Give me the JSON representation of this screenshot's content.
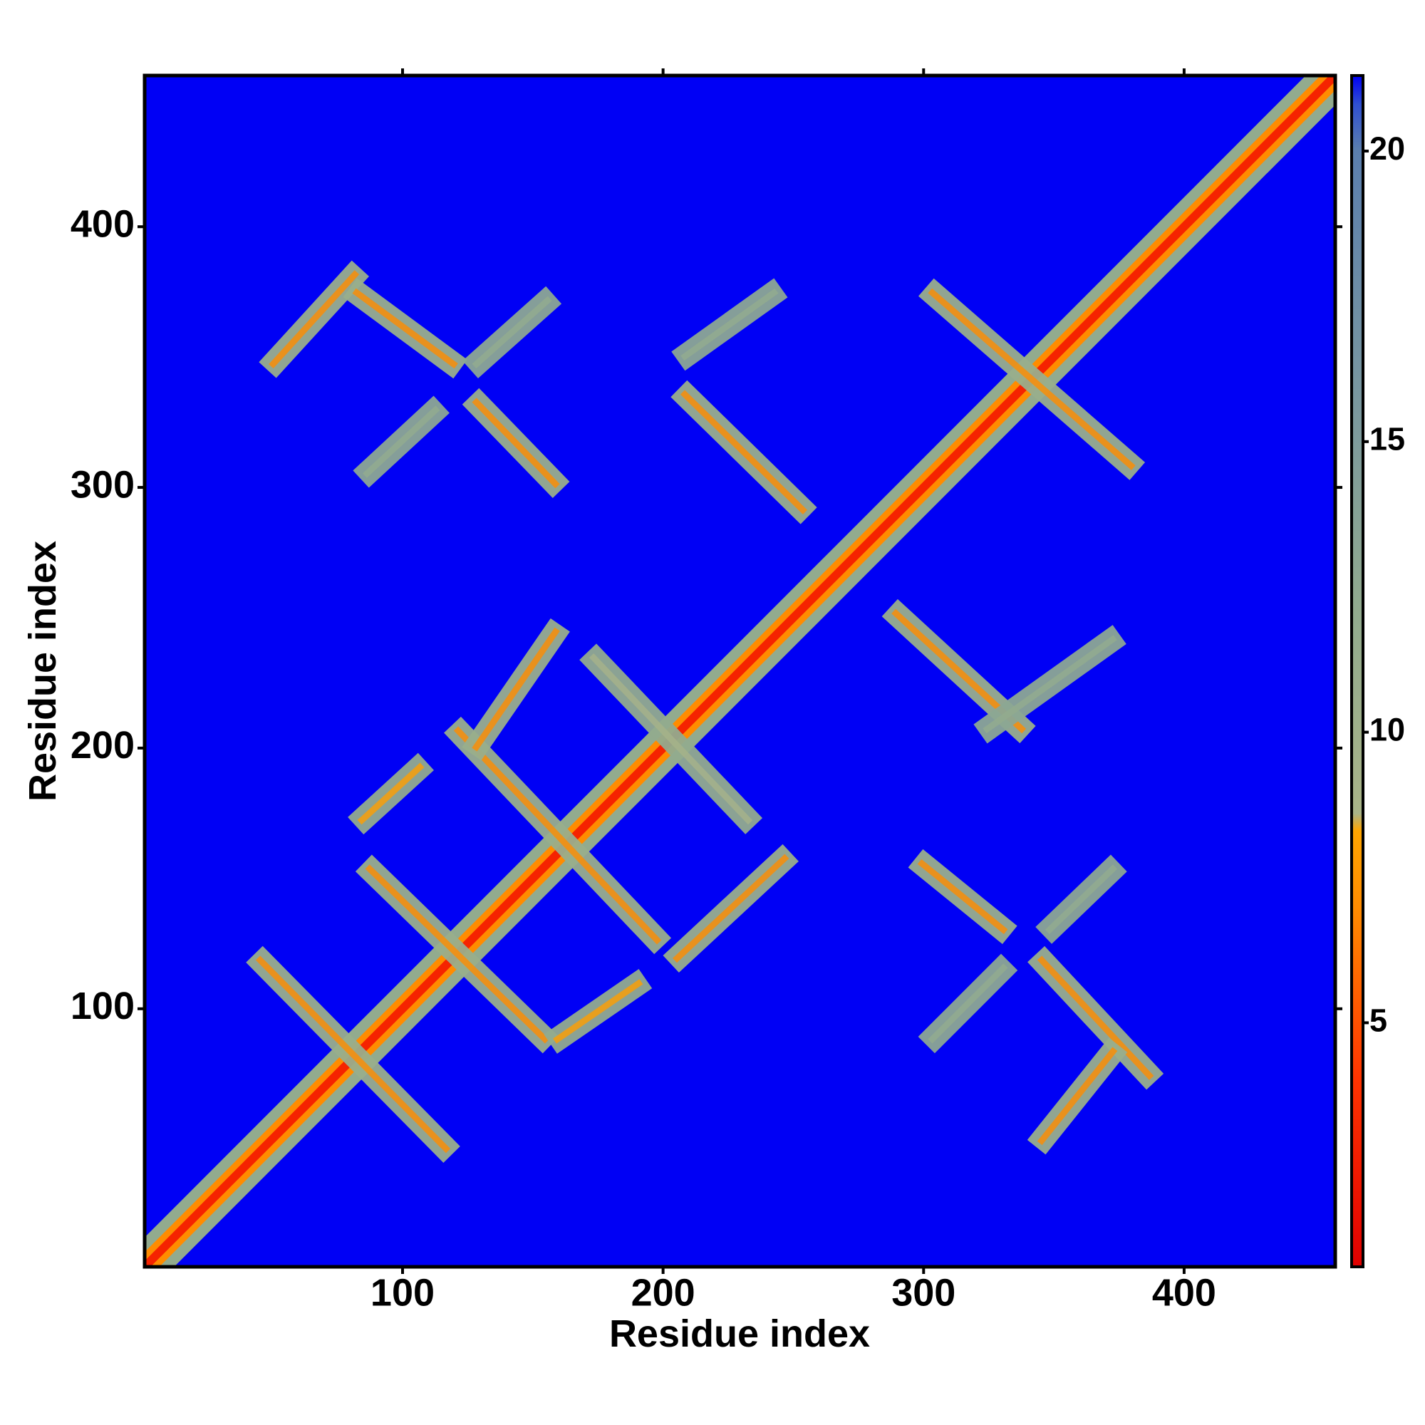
{
  "chart_data": {
    "type": "contact_map",
    "xlabel": "Residue index",
    "ylabel": "Residue index",
    "xlim": [
      1,
      458
    ],
    "ylim": [
      1,
      458
    ],
    "xticks": [
      100,
      200,
      300,
      400
    ],
    "yticks": [
      100,
      200,
      300,
      400
    ],
    "clim": [
      0.8,
      21.3
    ],
    "cticks": [
      5,
      10,
      15,
      20
    ],
    "colorscale": [
      {
        "value": 0.8,
        "color": "#e00000"
      },
      {
        "value": 4,
        "color": "#ff3300"
      },
      {
        "value": 7,
        "color": "#ff8c00"
      },
      {
        "value": 8.3,
        "color": "#ffa500"
      },
      {
        "value": 8.6,
        "color": "#a9b488"
      },
      {
        "value": 12,
        "color": "#92ab8e"
      },
      {
        "value": 16,
        "color": "#7896a0"
      },
      {
        "value": 20,
        "color": "#5b7fae"
      },
      {
        "value": 20.8,
        "color": "#3050d0"
      },
      {
        "value": 21.3,
        "color": "#0000f5"
      }
    ],
    "diagonal": {
      "start": 1,
      "end": 458,
      "values": [
        12,
        7,
        3
      ]
    },
    "bands": [
      {
        "x": [
          45,
          117
        ],
        "y": [
          119,
          46
        ],
        "values": [
          11,
          7
        ]
      },
      {
        "x": [
          87,
          155
        ],
        "y": [
          154,
          88
        ],
        "values": [
          11,
          7
        ]
      },
      {
        "x": [
          121,
          198
        ],
        "y": [
          207,
          126
        ],
        "values": [
          11,
          7
        ]
      },
      {
        "x": [
          128,
          159
        ],
        "y": [
          200,
          245
        ],
        "values": [
          11,
          7
        ]
      },
      {
        "x": [
          84,
          107
        ],
        "y": [
          172,
          193
        ],
        "values": [
          12,
          8
        ]
      },
      {
        "x": [
          159,
          191
        ],
        "y": [
          88,
          110
        ],
        "values": [
          12,
          8
        ]
      },
      {
        "x": [
          205,
          247
        ],
        "y": [
          119,
          158
        ],
        "values": [
          11,
          7
        ]
      },
      {
        "x": [
          173,
          233
        ],
        "y": [
          235,
          172
        ],
        "values": [
          12,
          9
        ]
      },
      {
        "x": [
          289,
          338
        ],
        "y": [
          252,
          207
        ],
        "values": [
          11,
          7
        ]
      },
      {
        "x": [
          324,
          373
        ],
        "y": [
          207,
          242
        ],
        "values": [
          13,
          12
        ]
      },
      {
        "x": [
          299,
          331
        ],
        "y": [
          156,
          130
        ],
        "values": [
          11,
          7
        ]
      },
      {
        "x": [
          303,
          331
        ],
        "y": [
          88,
          116
        ],
        "values": [
          13,
          12
        ]
      },
      {
        "x": [
          345,
          387
        ],
        "y": [
          119,
          74
        ],
        "values": [
          11,
          7
        ]
      },
      {
        "x": [
          345,
          373
        ],
        "y": [
          49,
          84
        ],
        "values": [
          11,
          7
        ]
      },
      {
        "x": [
          348,
          373
        ],
        "y": [
          130,
          154
        ],
        "values": [
          13,
          12
        ]
      },
      {
        "x": [
          303,
          380
        ],
        "y": [
          375,
          308
        ],
        "values": [
          11,
          7
        ]
      },
      {
        "x": [
          50,
          82
        ],
        "y": [
          347,
          382
        ],
        "values": [
          11,
          7
        ]
      },
      {
        "x": [
          82,
          120
        ],
        "y": [
          375,
          347
        ],
        "values": [
          11,
          7
        ]
      },
      {
        "x": [
          86,
          113
        ],
        "y": [
          305,
          330
        ],
        "values": [
          13,
          12
        ]
      },
      {
        "x": [
          128,
          159
        ],
        "y": [
          333,
          301
        ],
        "values": [
          11,
          7
        ]
      },
      {
        "x": [
          128,
          156
        ],
        "y": [
          347,
          372
        ],
        "values": [
          13,
          12
        ]
      },
      {
        "x": [
          208,
          254
        ],
        "y": [
          336,
          291
        ],
        "values": [
          11,
          7
        ]
      },
      {
        "x": [
          208,
          243
        ],
        "y": [
          350,
          375
        ],
        "values": [
          13,
          12
        ]
      }
    ]
  }
}
